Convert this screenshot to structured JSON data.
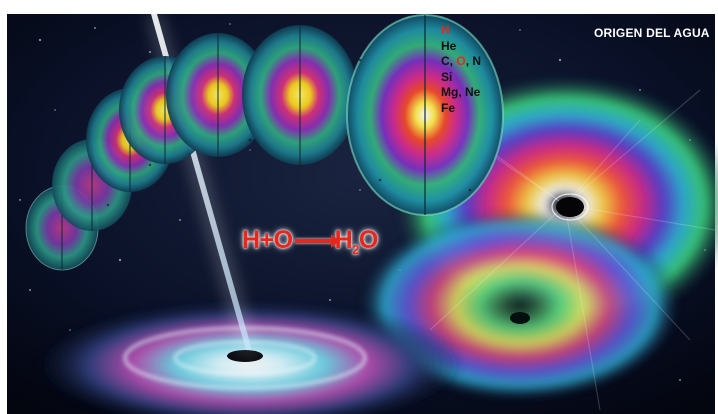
{
  "figure": {
    "title": "ORIGEN DEL AGUA",
    "element_layers": [
      "H",
      "He",
      "C, O, N",
      "Si",
      "Mg, Ne",
      "Fe"
    ],
    "element_layer_parts": {
      "cno_c": "C,",
      "cno_o": "O",
      "cno_n": ", N"
    },
    "equation": {
      "left": "H+O",
      "right_base": "H",
      "right_sub": "2",
      "right_end": "O"
    },
    "colors": {
      "highlight_red": "#e8281a",
      "title_white": "#ffffff",
      "space": "#060a1c"
    },
    "objects": [
      "massive-star-sequence",
      "black-hole",
      "accretion-disk",
      "jet",
      "rainbow-vortex"
    ]
  }
}
